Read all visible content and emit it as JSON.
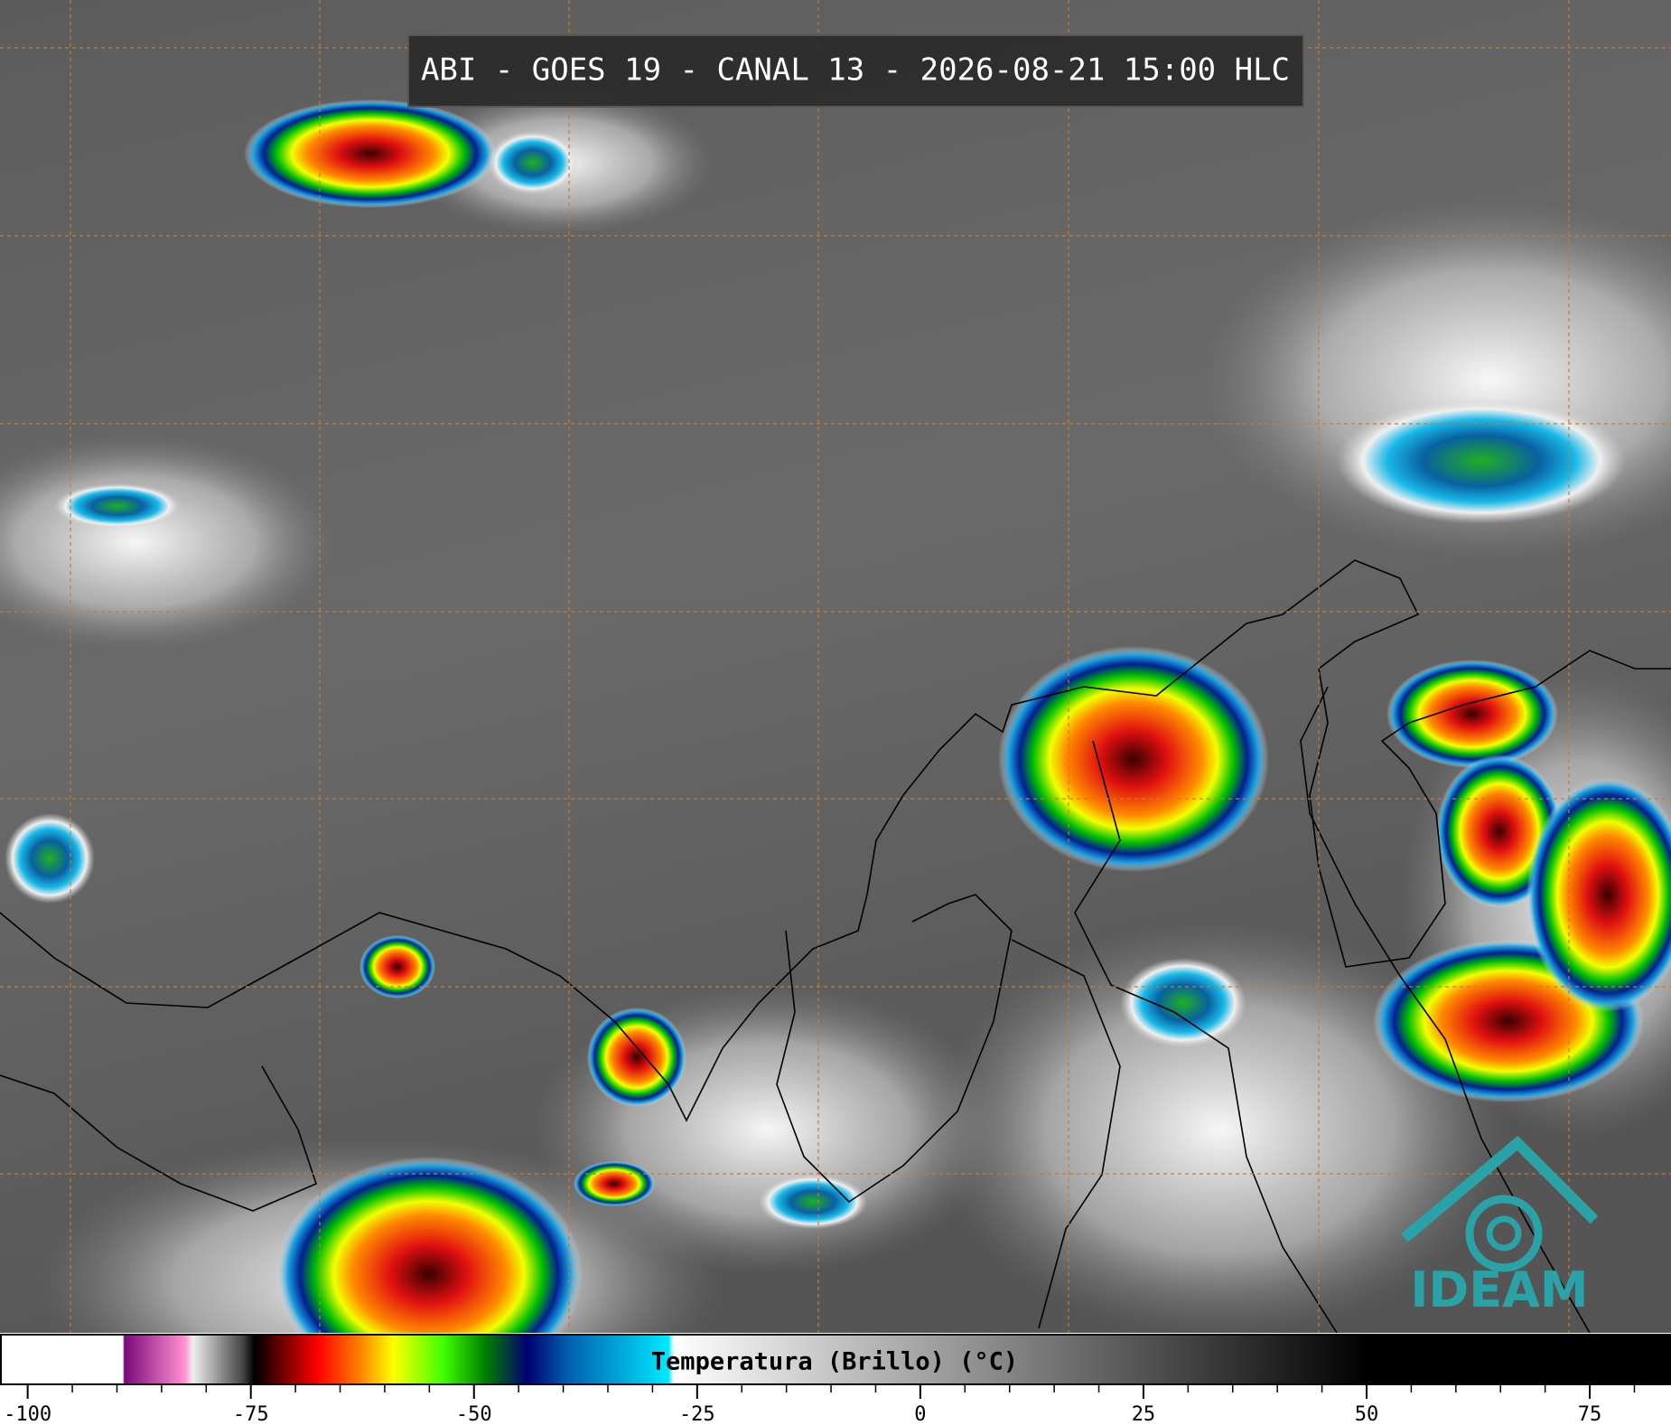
{
  "header": {
    "title": "ABI - GOES 19 - CANAL 13 - 2026-08-21 15:00 HLC"
  },
  "logo": {
    "text": "IDEAM"
  },
  "colorbar": {
    "label": "Temperatura (Brillo) (°C)",
    "lim": [
      -103,
      84
    ],
    "ticks": [
      -100,
      -75,
      -50,
      -25,
      0,
      25,
      50,
      75
    ]
  }
}
